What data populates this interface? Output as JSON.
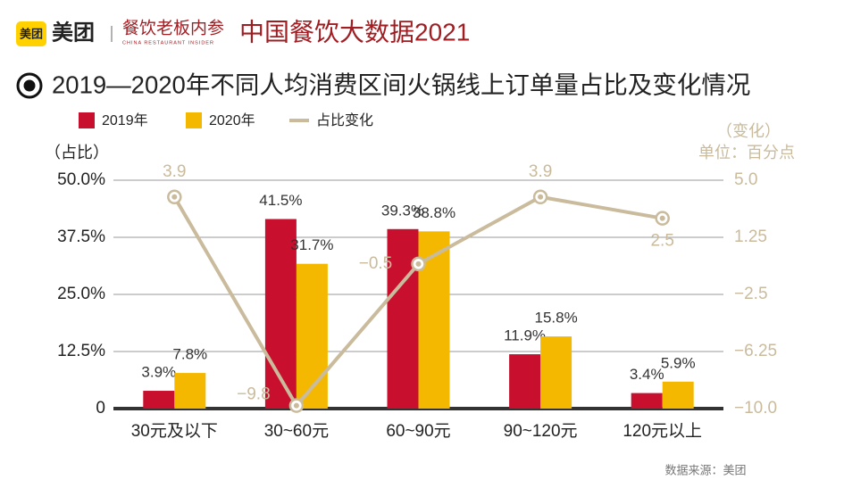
{
  "header": {
    "logo_text": "美团",
    "brand": "美团",
    "partner": "餐饮老板内参",
    "partner_sub": "CHINA RESTAURANT INSIDER",
    "title": "中国餐饮大数据2021"
  },
  "chart_data": {
    "type": "bar",
    "title": "2019—2020年不同人均消费区间火锅线上订单量占比及变化情况",
    "y_label": "（占比）",
    "y2_label": "（变化）",
    "y2_unit": "单位：百分点",
    "categories": [
      "30元及以下",
      "30~60元",
      "60~90元",
      "90~120元",
      "120元以上"
    ],
    "series": [
      {
        "name": "2019年",
        "color": "#c8102e",
        "values": [
          3.9,
          41.5,
          39.3,
          11.9,
          3.4
        ],
        "value_labels": [
          "3.9%",
          "41.5%",
          "39.3%",
          "11.9%",
          "3.4%"
        ]
      },
      {
        "name": "2020年",
        "color": "#f5b800",
        "values": [
          7.8,
          31.7,
          38.8,
          15.8,
          5.9
        ],
        "value_labels": [
          "7.8%",
          "31.7%",
          "38.8%",
          "15.8%",
          "5.9%"
        ]
      },
      {
        "name": "占比变化",
        "type": "line",
        "axis": "y2",
        "color": "#c9bb9c",
        "values": [
          3.9,
          -9.8,
          -0.5,
          3.9,
          2.5
        ],
        "value_labels": [
          "3.9",
          "−9.8",
          "−0.5",
          "3.9",
          "2.5"
        ]
      }
    ],
    "ylim": [
      0,
      50
    ],
    "yticks": [
      0,
      {
        "value": 12.5,
        "label": "12.5%"
      },
      {
        "value": 25,
        "label": "25.0%"
      },
      {
        "value": 37.5,
        "label": "37.5%"
      },
      {
        "value": 50,
        "label": "50.0%"
      }
    ],
    "y2lim": [
      -10,
      5
    ],
    "y2ticks": [
      {
        "value": -10,
        "label": "−10.0"
      },
      {
        "value": -6.25,
        "label": "−6.25"
      },
      {
        "value": -2.5,
        "label": "−2.5"
      },
      1.25,
      {
        "value": 5,
        "label": "5.0"
      }
    ],
    "grid": true,
    "legend": "top-left",
    "source": "数据来源：美团"
  }
}
